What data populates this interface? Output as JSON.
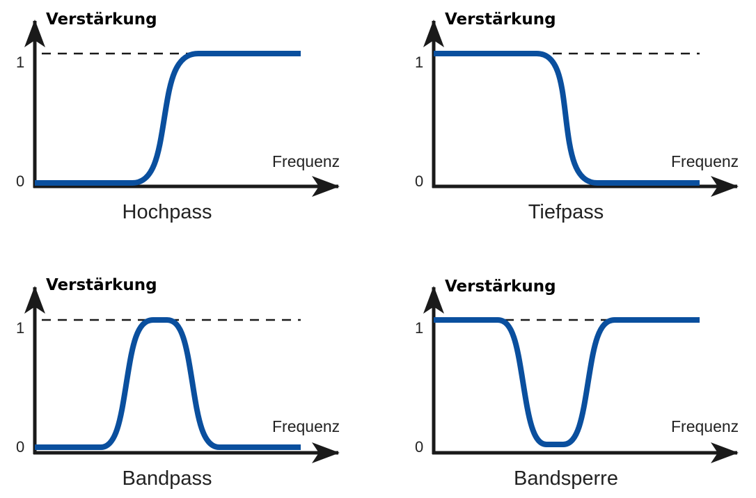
{
  "colors": {
    "curve": "#0a4f9e",
    "axis": "#1a1a1a"
  },
  "panels": [
    {
      "title": "Hochpass",
      "y_label": "Verstärkung",
      "x_label": "Frequenz",
      "tick_high": "1",
      "tick_low": "0",
      "shape": "highpass"
    },
    {
      "title": "Tiefpass",
      "y_label": "Verstärkung",
      "x_label": "Frequenz",
      "tick_high": "1",
      "tick_low": "0",
      "shape": "lowpass"
    },
    {
      "title": "Bandpass",
      "y_label": "Verstärkung",
      "x_label": "Frequenz",
      "tick_high": "1",
      "tick_low": "0",
      "shape": "bandpass"
    },
    {
      "title": "Bandsperre",
      "y_label": "Verstärkung",
      "x_label": "Frequenz",
      "tick_high": "1",
      "tick_low": "0",
      "shape": "bandstop"
    }
  ]
}
